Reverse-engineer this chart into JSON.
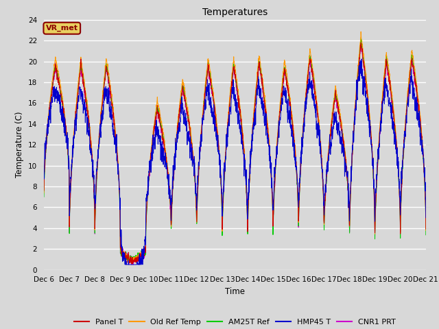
{
  "title": "Temperatures",
  "xlabel": "Time",
  "ylabel": "Temperature (C)",
  "ylim": [
    0,
    24
  ],
  "yticks": [
    0,
    2,
    4,
    6,
    8,
    10,
    12,
    14,
    16,
    18,
    20,
    22,
    24
  ],
  "xtick_labels": [
    "Dec 6",
    "Dec 7",
    "Dec 8",
    "Dec 9",
    "Dec 10",
    "Dec 11",
    "Dec 12",
    "Dec 13",
    "Dec 14",
    "Dec 15",
    "Dec 16",
    "Dec 17",
    "Dec 18",
    "Dec 19",
    "Dec 20",
    "Dec 21"
  ],
  "annotation_text": "VR_met",
  "series_colors": {
    "Panel T": "#cc0000",
    "Old Ref Temp": "#ff9900",
    "AM25T Ref": "#00cc00",
    "HMP45 T": "#0000cc",
    "CNR1 PRT": "#cc00cc"
  },
  "bg_color": "#d8d8d8",
  "plot_bg_color": "#d8d8d8",
  "grid_color": "#ffffff",
  "legend_entries": [
    "Panel T",
    "Old Ref Temp",
    "AM25T Ref",
    "HMP45 T",
    "CNR1 PRT"
  ]
}
